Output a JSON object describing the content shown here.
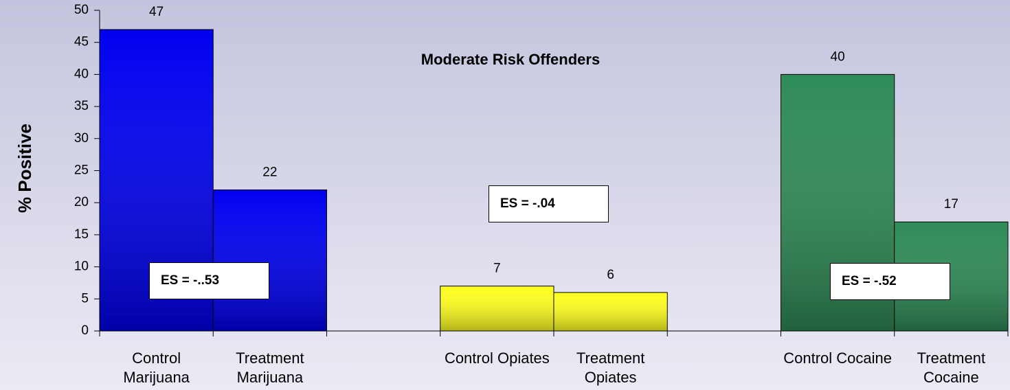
{
  "chart_data": {
    "type": "bar",
    "title": "Moderate Risk Offenders",
    "y_label": "% Positive",
    "categories": [
      "Control Marijuana",
      "Treatment Marijuana",
      null,
      "Control Opiates",
      "Treatment Opiates",
      null,
      "Control Cocaine",
      "Treatment Cocaine"
    ],
    "values": [
      47,
      22,
      null,
      7,
      6,
      null,
      40,
      17
    ],
    "colors": [
      "#0000f0",
      "#0000f0",
      null,
      "#ffff20",
      "#ffff20",
      null,
      "#2e8b57",
      "#2e8b57"
    ],
    "ylim": [
      0,
      50
    ],
    "yticks": [
      0,
      5,
      10,
      15,
      20,
      25,
      30,
      35,
      40,
      45,
      50
    ],
    "annotations": [
      "ES = -..53",
      "ES = -.04",
      "ES = -.52"
    ]
  }
}
